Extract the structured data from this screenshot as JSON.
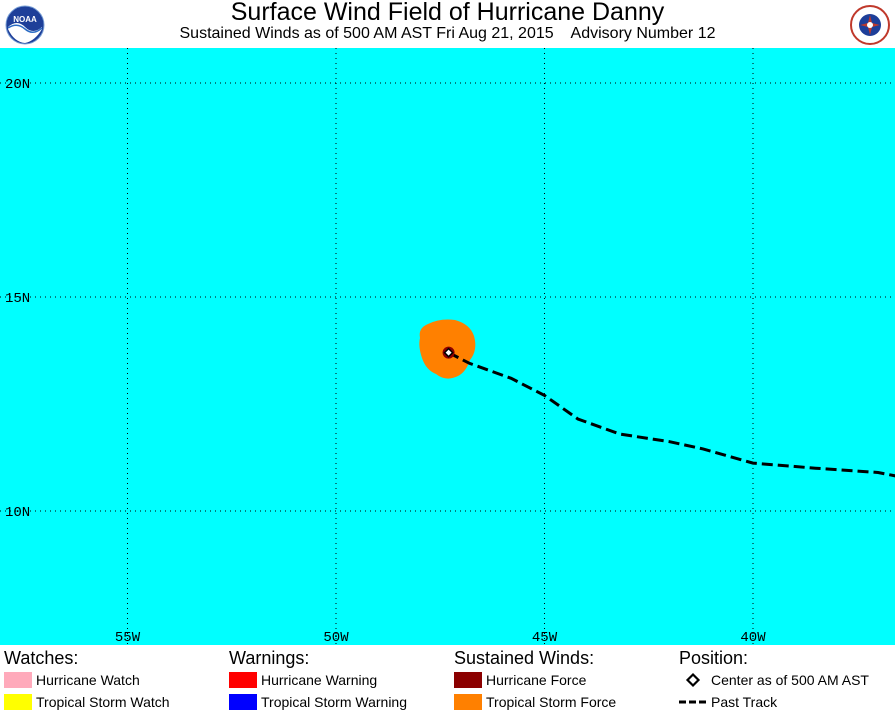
{
  "header": {
    "title": "Surface Wind Field of Hurricane Danny",
    "subtitle": "Sustained Winds as of 500 AM AST Fri Aug 21, 2015    Advisory Number 12",
    "left_logo": "NOAA",
    "right_logo": "NATIONAL WEATHER SERVICE"
  },
  "map": {
    "ocean_color": "#00ffff",
    "lat_labels": [
      "20N",
      "15N",
      "10N"
    ],
    "lon_labels": [
      "55W",
      "50W",
      "45W",
      "40W"
    ],
    "storm_center": {
      "lon": -47.3,
      "lat": 13.7
    },
    "tropical_storm_force_color": "#ff8000",
    "hurricane_force_color": "#8b0000",
    "past_track": [
      [
        -47.3,
        13.7
      ],
      [
        -46.8,
        13.45
      ],
      [
        -45.8,
        13.1
      ],
      [
        -45.0,
        12.7
      ],
      [
        -44.2,
        12.15
      ],
      [
        -43.2,
        11.8
      ],
      [
        -42.0,
        11.62
      ],
      [
        -41.2,
        11.45
      ],
      [
        -40.0,
        11.12
      ],
      [
        -38.5,
        11.0
      ],
      [
        -37.0,
        10.9
      ],
      [
        -35.7,
        10.65
      ]
    ]
  },
  "legend": {
    "watches": {
      "heading": "Watches:",
      "items": [
        {
          "label": "Hurricane Watch",
          "color": "#ffaabb"
        },
        {
          "label": "Tropical Storm Watch",
          "color": "#ffff00"
        }
      ]
    },
    "warnings": {
      "heading": "Warnings:",
      "items": [
        {
          "label": "Hurricane Warning",
          "color": "#ff0000"
        },
        {
          "label": "Tropical Storm Warning",
          "color": "#0000ff"
        }
      ]
    },
    "winds": {
      "heading": "Sustained Winds:",
      "items": [
        {
          "label": "Hurricane Force",
          "color": "#8b0000"
        },
        {
          "label": "Tropical Storm Force",
          "color": "#ff8000"
        }
      ]
    },
    "position": {
      "heading": "Position:",
      "items": [
        {
          "label": "Center as of 500 AM AST",
          "icon": "diamond-icon"
        },
        {
          "label": "Past Track",
          "icon": "dashed-line-icon"
        }
      ]
    }
  }
}
